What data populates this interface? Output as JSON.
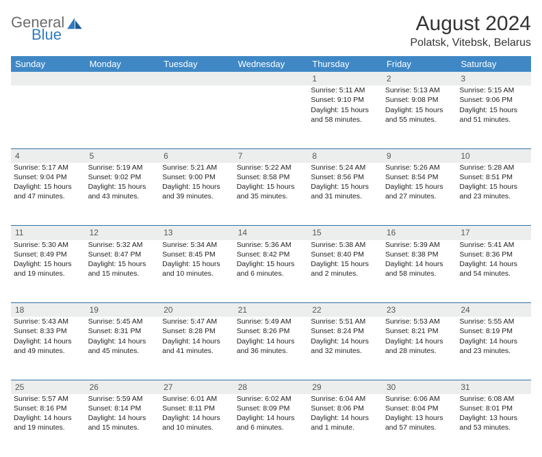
{
  "brand": {
    "name": "General",
    "sub": "Blue"
  },
  "title": "August 2024",
  "location": "Polatsk, Vitebsk, Belarus",
  "colors": {
    "header_bg": "#3f88c5",
    "header_text": "#ffffff",
    "daynum_bg": "#eceeee",
    "rule": "#2f6fa3",
    "logo_gray": "#6b6b6b",
    "logo_blue": "#2f7ac0"
  },
  "days": [
    "Sunday",
    "Monday",
    "Tuesday",
    "Wednesday",
    "Thursday",
    "Friday",
    "Saturday"
  ],
  "weeks": [
    {
      "nums": [
        "",
        "",
        "",
        "",
        "1",
        "2",
        "3"
      ],
      "cells": [
        [],
        [],
        [],
        [],
        [
          "Sunrise: 5:11 AM",
          "Sunset: 9:10 PM",
          "Daylight: 15 hours and 58 minutes."
        ],
        [
          "Sunrise: 5:13 AM",
          "Sunset: 9:08 PM",
          "Daylight: 15 hours and 55 minutes."
        ],
        [
          "Sunrise: 5:15 AM",
          "Sunset: 9:06 PM",
          "Daylight: 15 hours and 51 minutes."
        ]
      ]
    },
    {
      "nums": [
        "4",
        "5",
        "6",
        "7",
        "8",
        "9",
        "10"
      ],
      "cells": [
        [
          "Sunrise: 5:17 AM",
          "Sunset: 9:04 PM",
          "Daylight: 15 hours and 47 minutes."
        ],
        [
          "Sunrise: 5:19 AM",
          "Sunset: 9:02 PM",
          "Daylight: 15 hours and 43 minutes."
        ],
        [
          "Sunrise: 5:21 AM",
          "Sunset: 9:00 PM",
          "Daylight: 15 hours and 39 minutes."
        ],
        [
          "Sunrise: 5:22 AM",
          "Sunset: 8:58 PM",
          "Daylight: 15 hours and 35 minutes."
        ],
        [
          "Sunrise: 5:24 AM",
          "Sunset: 8:56 PM",
          "Daylight: 15 hours and 31 minutes."
        ],
        [
          "Sunrise: 5:26 AM",
          "Sunset: 8:54 PM",
          "Daylight: 15 hours and 27 minutes."
        ],
        [
          "Sunrise: 5:28 AM",
          "Sunset: 8:51 PM",
          "Daylight: 15 hours and 23 minutes."
        ]
      ]
    },
    {
      "nums": [
        "11",
        "12",
        "13",
        "14",
        "15",
        "16",
        "17"
      ],
      "cells": [
        [
          "Sunrise: 5:30 AM",
          "Sunset: 8:49 PM",
          "Daylight: 15 hours and 19 minutes."
        ],
        [
          "Sunrise: 5:32 AM",
          "Sunset: 8:47 PM",
          "Daylight: 15 hours and 15 minutes."
        ],
        [
          "Sunrise: 5:34 AM",
          "Sunset: 8:45 PM",
          "Daylight: 15 hours and 10 minutes."
        ],
        [
          "Sunrise: 5:36 AM",
          "Sunset: 8:42 PM",
          "Daylight: 15 hours and 6 minutes."
        ],
        [
          "Sunrise: 5:38 AM",
          "Sunset: 8:40 PM",
          "Daylight: 15 hours and 2 minutes."
        ],
        [
          "Sunrise: 5:39 AM",
          "Sunset: 8:38 PM",
          "Daylight: 14 hours and 58 minutes."
        ],
        [
          "Sunrise: 5:41 AM",
          "Sunset: 8:36 PM",
          "Daylight: 14 hours and 54 minutes."
        ]
      ]
    },
    {
      "nums": [
        "18",
        "19",
        "20",
        "21",
        "22",
        "23",
        "24"
      ],
      "cells": [
        [
          "Sunrise: 5:43 AM",
          "Sunset: 8:33 PM",
          "Daylight: 14 hours and 49 minutes."
        ],
        [
          "Sunrise: 5:45 AM",
          "Sunset: 8:31 PM",
          "Daylight: 14 hours and 45 minutes."
        ],
        [
          "Sunrise: 5:47 AM",
          "Sunset: 8:28 PM",
          "Daylight: 14 hours and 41 minutes."
        ],
        [
          "Sunrise: 5:49 AM",
          "Sunset: 8:26 PM",
          "Daylight: 14 hours and 36 minutes."
        ],
        [
          "Sunrise: 5:51 AM",
          "Sunset: 8:24 PM",
          "Daylight: 14 hours and 32 minutes."
        ],
        [
          "Sunrise: 5:53 AM",
          "Sunset: 8:21 PM",
          "Daylight: 14 hours and 28 minutes."
        ],
        [
          "Sunrise: 5:55 AM",
          "Sunset: 8:19 PM",
          "Daylight: 14 hours and 23 minutes."
        ]
      ]
    },
    {
      "nums": [
        "25",
        "26",
        "27",
        "28",
        "29",
        "30",
        "31"
      ],
      "cells": [
        [
          "Sunrise: 5:57 AM",
          "Sunset: 8:16 PM",
          "Daylight: 14 hours and 19 minutes."
        ],
        [
          "Sunrise: 5:59 AM",
          "Sunset: 8:14 PM",
          "Daylight: 14 hours and 15 minutes."
        ],
        [
          "Sunrise: 6:01 AM",
          "Sunset: 8:11 PM",
          "Daylight: 14 hours and 10 minutes."
        ],
        [
          "Sunrise: 6:02 AM",
          "Sunset: 8:09 PM",
          "Daylight: 14 hours and 6 minutes."
        ],
        [
          "Sunrise: 6:04 AM",
          "Sunset: 8:06 PM",
          "Daylight: 14 hours and 1 minute."
        ],
        [
          "Sunrise: 6:06 AM",
          "Sunset: 8:04 PM",
          "Daylight: 13 hours and 57 minutes."
        ],
        [
          "Sunrise: 6:08 AM",
          "Sunset: 8:01 PM",
          "Daylight: 13 hours and 53 minutes."
        ]
      ]
    }
  ]
}
